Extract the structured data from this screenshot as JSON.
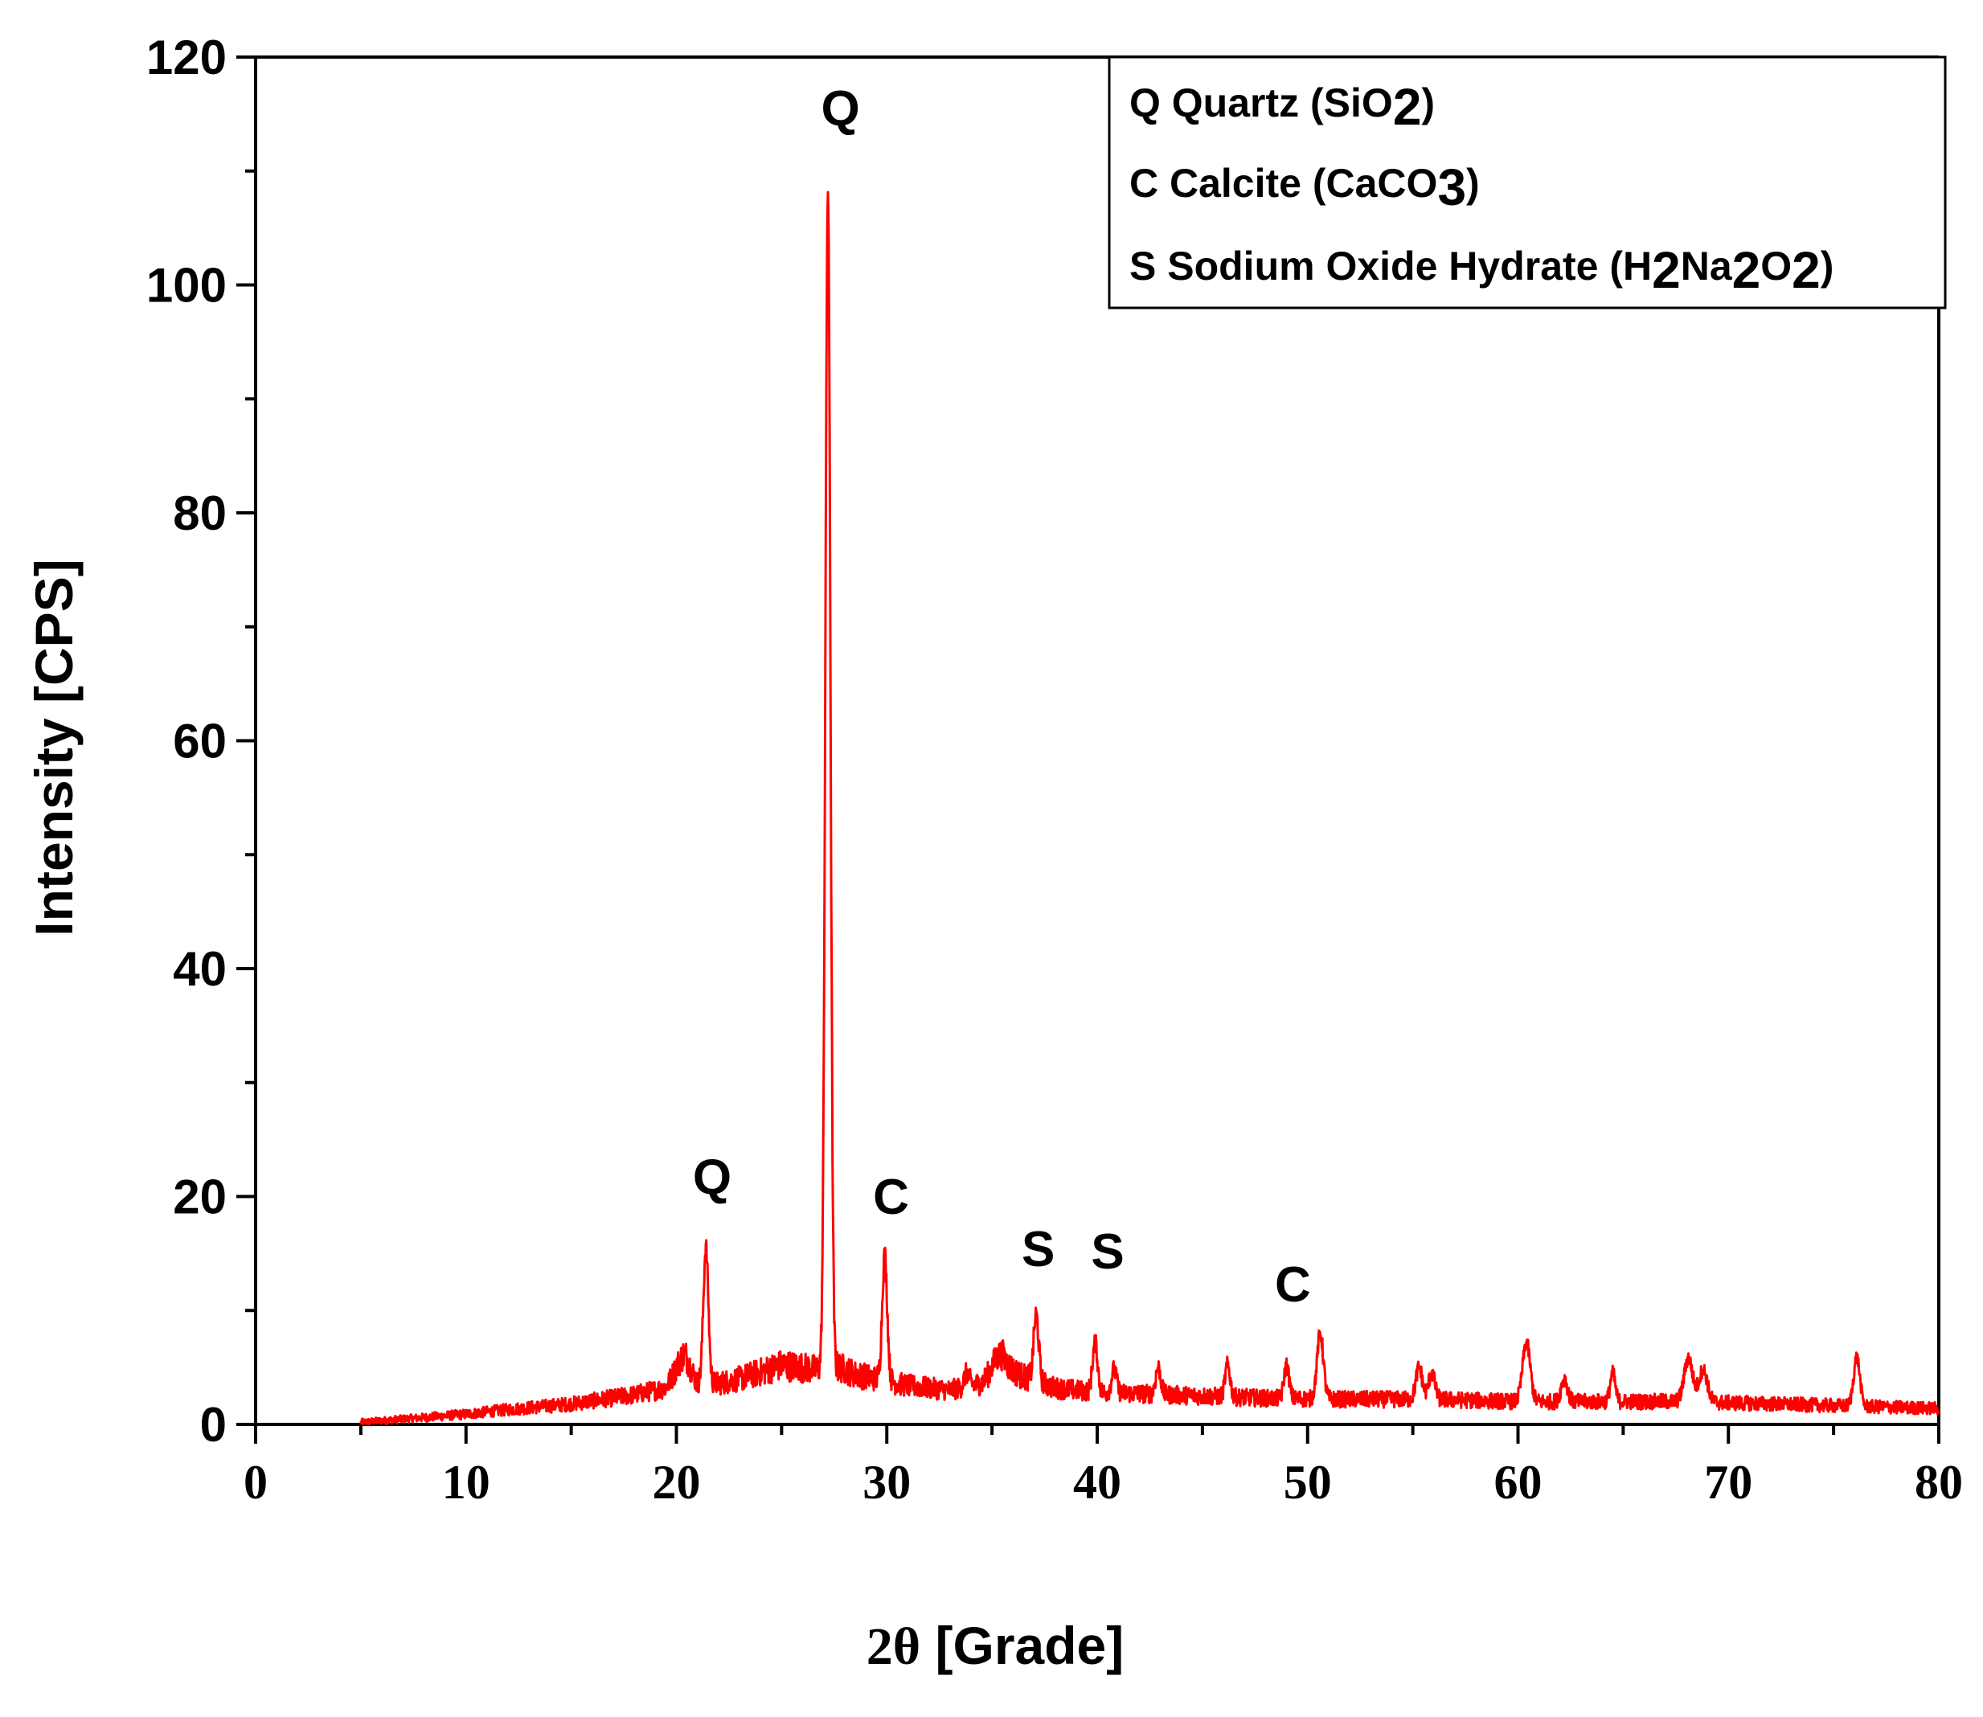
{
  "chart_data": {
    "type": "line",
    "xlabel_prefix": "2θ",
    "xlabel_rest": " [Grade]",
    "ylabel": "Intensity [CPS]",
    "xlim": [
      0,
      80
    ],
    "ylim": [
      0,
      120
    ],
    "x_ticks": [
      "0",
      "10",
      "20",
      "30",
      "40",
      "50",
      "60",
      "70",
      "80"
    ],
    "y_ticks": [
      "0",
      "20",
      "40",
      "60",
      "80",
      "100",
      "120"
    ],
    "legend_position": "top-right",
    "grid": false,
    "colors": {
      "series": "#ff0000",
      "axis": "#000000"
    },
    "series": [
      {
        "x_start": 5,
        "x_end": 80,
        "baseline_points": [
          [
            5,
            0.2
          ],
          [
            8,
            0.6
          ],
          [
            10,
            0.9
          ],
          [
            12,
            1.3
          ],
          [
            15,
            1.8
          ],
          [
            18,
            2.6
          ],
          [
            19.5,
            3.2
          ],
          [
            20.4,
            5.5
          ],
          [
            21,
            3.5
          ],
          [
            22,
            3.6
          ],
          [
            23,
            4.0
          ],
          [
            24,
            4.6
          ],
          [
            25,
            5.2
          ],
          [
            26,
            5.0
          ],
          [
            26.7,
            4.8
          ],
          [
            27.8,
            5.0
          ],
          [
            28.5,
            4.4
          ],
          [
            29.5,
            4.0
          ],
          [
            31,
            3.4
          ],
          [
            33,
            3.0
          ],
          [
            34.5,
            3.6
          ],
          [
            35.5,
            5.2
          ],
          [
            36.5,
            4.2
          ],
          [
            38,
            3.2
          ],
          [
            40,
            2.8
          ],
          [
            42,
            2.7
          ],
          [
            45,
            2.5
          ],
          [
            48,
            2.3
          ],
          [
            52,
            2.2
          ],
          [
            56,
            2.2
          ],
          [
            60,
            2.0
          ],
          [
            64,
            2.0
          ],
          [
            68,
            2.0
          ],
          [
            72,
            1.8
          ],
          [
            76,
            1.6
          ],
          [
            80,
            1.4
          ]
        ],
        "peaks": [
          {
            "x": 20.3,
            "y": 6.0,
            "width": 0.35
          },
          {
            "x": 21.4,
            "y": 15.5,
            "width": 0.12
          },
          {
            "x": 27.2,
            "y": 108.2,
            "width": 0.12
          },
          {
            "x": 29.9,
            "y": 14.8,
            "width": 0.12
          },
          {
            "x": 33.8,
            "y": 4.5,
            "width": 0.12
          },
          {
            "x": 35.3,
            "y": 6.0,
            "width": 0.3
          },
          {
            "x": 37.1,
            "y": 9.6,
            "width": 0.12
          },
          {
            "x": 39.9,
            "y": 7.2,
            "width": 0.12
          },
          {
            "x": 40.8,
            "y": 4.8,
            "width": 0.12
          },
          {
            "x": 42.9,
            "y": 5.0,
            "width": 0.12
          },
          {
            "x": 46.2,
            "y": 5.2,
            "width": 0.12
          },
          {
            "x": 49.0,
            "y": 5.2,
            "width": 0.12
          },
          {
            "x": 50.6,
            "y": 8.0,
            "width": 0.15
          },
          {
            "x": 55.3,
            "y": 5.0,
            "width": 0.15
          },
          {
            "x": 55.9,
            "y": 4.5,
            "width": 0.15
          },
          {
            "x": 60.4,
            "y": 7.2,
            "width": 0.18
          },
          {
            "x": 62.2,
            "y": 4.0,
            "width": 0.15
          },
          {
            "x": 64.5,
            "y": 4.5,
            "width": 0.12
          },
          {
            "x": 68.1,
            "y": 5.8,
            "width": 0.2
          },
          {
            "x": 68.8,
            "y": 4.8,
            "width": 0.2
          },
          {
            "x": 76.1,
            "y": 5.9,
            "width": 0.15
          }
        ]
      }
    ],
    "annotations": [
      {
        "label": "Q",
        "x": 27.8,
        "y": 114
      },
      {
        "label": "Q",
        "x": 21.7,
        "y": 20.2
      },
      {
        "label": "C",
        "x": 30.2,
        "y": 18.5
      },
      {
        "label": "S",
        "x": 37.2,
        "y": 13.9
      },
      {
        "label": "S",
        "x": 40.5,
        "y": 13.7
      },
      {
        "label": "C",
        "x": 49.3,
        "y": 10.8
      }
    ],
    "legend": [
      {
        "text": "Q Quartz (SiO",
        "sub": "2",
        "tail": ")"
      },
      {
        "text": "C Calcite (CaCO",
        "sub": "3",
        "tail": ")"
      },
      {
        "text": "S Sodium Oxide Hydrate (H",
        "sub": "2",
        "mid": "Na",
        "sub2": "2",
        "mid2": "O",
        "sub3": "2",
        "tail": ")"
      }
    ]
  }
}
